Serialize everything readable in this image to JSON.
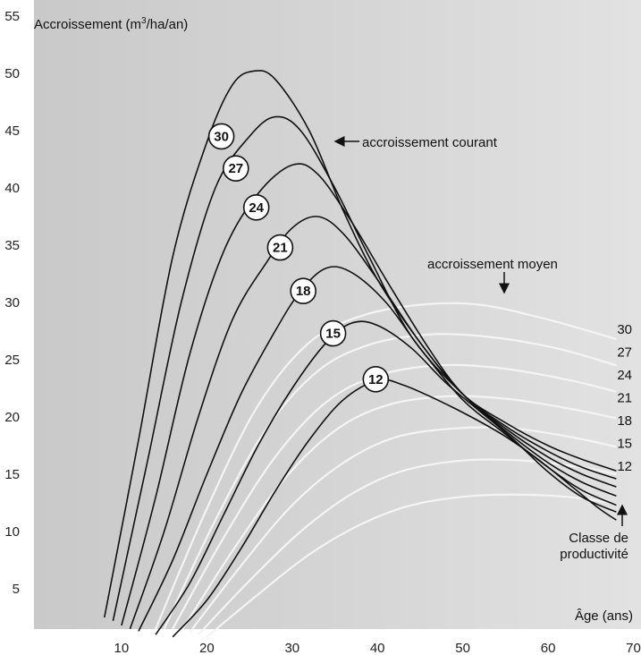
{
  "chart_data": {
    "type": "line",
    "ylabel_pre": "Accroissement (m",
    "ylabel_sup": "3",
    "ylabel_post": "/ha/an)",
    "xlabel": "Âge (ans)",
    "xlim": [
      0,
      70
    ],
    "ylim": [
      0,
      55
    ],
    "x_ticks": [
      10,
      20,
      30,
      40,
      50,
      60,
      70
    ],
    "y_ticks": [
      5,
      10,
      15,
      20,
      25,
      30,
      35,
      40,
      45,
      50,
      55
    ],
    "annotation_current": "accroissement courant",
    "annotation_mean": "accroissement moyen",
    "class_title_line1": "Classe de",
    "class_title_line2": "productivité",
    "current_increment_series": [
      {
        "name": "30",
        "points": [
          [
            8,
            2.5
          ],
          [
            12,
            18
          ],
          [
            16,
            34
          ],
          [
            20,
            44
          ],
          [
            23,
            49
          ],
          [
            25.5,
            50.2
          ],
          [
            28,
            49.5
          ],
          [
            32,
            45
          ],
          [
            36,
            38
          ],
          [
            40,
            32
          ],
          [
            45,
            26.5
          ],
          [
            50,
            22
          ],
          [
            55,
            19.5
          ],
          [
            60,
            17.5
          ],
          [
            64,
            16.3
          ],
          [
            68,
            15.3
          ]
        ]
      },
      {
        "name": "27",
        "points": [
          [
            9,
            2.2
          ],
          [
            13,
            16
          ],
          [
            17,
            30
          ],
          [
            21,
            40
          ],
          [
            25,
            44.5
          ],
          [
            28,
            46.2
          ],
          [
            31,
            45
          ],
          [
            35,
            40
          ],
          [
            39,
            34
          ],
          [
            44,
            27
          ],
          [
            50,
            22
          ],
          [
            55,
            19.2
          ],
          [
            60,
            17
          ],
          [
            64,
            15.6
          ],
          [
            68,
            14.6
          ]
        ]
      },
      {
        "name": "24",
        "points": [
          [
            10,
            1.8
          ],
          [
            14,
            13
          ],
          [
            18,
            25.5
          ],
          [
            22,
            34.5
          ],
          [
            26,
            39.5
          ],
          [
            30,
            42
          ],
          [
            33,
            41.2
          ],
          [
            37,
            37
          ],
          [
            41,
            32
          ],
          [
            46,
            26
          ],
          [
            50,
            22
          ],
          [
            55,
            19
          ],
          [
            60,
            16.5
          ],
          [
            64,
            15
          ],
          [
            68,
            13.9
          ]
        ]
      },
      {
        "name": "21",
        "points": [
          [
            11,
            1.5
          ],
          [
            15,
            10
          ],
          [
            19,
            20
          ],
          [
            23,
            28.5
          ],
          [
            27,
            33.5
          ],
          [
            30,
            36.5
          ],
          [
            33,
            37.5
          ],
          [
            36,
            36
          ],
          [
            40,
            32
          ],
          [
            45,
            26.5
          ],
          [
            50,
            22
          ],
          [
            55,
            18.8
          ],
          [
            60,
            16
          ],
          [
            64,
            14.3
          ],
          [
            68,
            13.1
          ]
        ]
      },
      {
        "name": "18",
        "points": [
          [
            12,
            1.3
          ],
          [
            16,
            7.5
          ],
          [
            20,
            15
          ],
          [
            24,
            22
          ],
          [
            28,
            27.5
          ],
          [
            31,
            31
          ],
          [
            34,
            33
          ],
          [
            37,
            32.6
          ],
          [
            41,
            30
          ],
          [
            45,
            26
          ],
          [
            50,
            21.5
          ],
          [
            55,
            18.5
          ],
          [
            60,
            15.6
          ],
          [
            64,
            13.6
          ],
          [
            68,
            12.3
          ]
        ]
      },
      {
        "name": "15",
        "points": [
          [
            14,
            1
          ],
          [
            18,
            5.5
          ],
          [
            22,
            11.5
          ],
          [
            26,
            17.5
          ],
          [
            30,
            22.5
          ],
          [
            34,
            26.5
          ],
          [
            37,
            28.2
          ],
          [
            40,
            28
          ],
          [
            44,
            26
          ],
          [
            48,
            23
          ],
          [
            52,
            20.5
          ],
          [
            56,
            18
          ],
          [
            60,
            15.2
          ],
          [
            64,
            13
          ],
          [
            68,
            11.7
          ]
        ]
      },
      {
        "name": "12",
        "points": [
          [
            16,
            0.8
          ],
          [
            20,
            4
          ],
          [
            24,
            8.5
          ],
          [
            28,
            13.5
          ],
          [
            32,
            18
          ],
          [
            36,
            21.5
          ],
          [
            40,
            23.2
          ],
          [
            43,
            22.8
          ],
          [
            47,
            21.5
          ],
          [
            51,
            20
          ],
          [
            55,
            18.3
          ],
          [
            59,
            16.2
          ],
          [
            63,
            13.8
          ],
          [
            66,
            12
          ],
          [
            68,
            11
          ]
        ]
      }
    ],
    "mean_increment_series": [
      {
        "name": "30",
        "points": [
          [
            14,
            1.5
          ],
          [
            20,
            12
          ],
          [
            26,
            21
          ],
          [
            32,
            26.5
          ],
          [
            38,
            28.8
          ],
          [
            45,
            29.8
          ],
          [
            52,
            29.8
          ],
          [
            60,
            28.5
          ],
          [
            68,
            26.8
          ]
        ]
      },
      {
        "name": "27",
        "points": [
          [
            15,
            1.5
          ],
          [
            21,
            11
          ],
          [
            27,
            19
          ],
          [
            33,
            24
          ],
          [
            39,
            26.3
          ],
          [
            46,
            27.2
          ],
          [
            53,
            27
          ],
          [
            61,
            26
          ],
          [
            68,
            24.5
          ]
        ]
      },
      {
        "name": "24",
        "points": [
          [
            16,
            1.5
          ],
          [
            22,
            9.5
          ],
          [
            28,
            16.5
          ],
          [
            34,
            21.3
          ],
          [
            40,
            23.6
          ],
          [
            47,
            24.5
          ],
          [
            54,
            24.3
          ],
          [
            62,
            23.3
          ],
          [
            68,
            22.2
          ]
        ]
      },
      {
        "name": "21",
        "points": [
          [
            17,
            1.3
          ],
          [
            23,
            8.3
          ],
          [
            29,
            14.5
          ],
          [
            35,
            18.8
          ],
          [
            41,
            21
          ],
          [
            48,
            21.8
          ],
          [
            55,
            21.6
          ],
          [
            62,
            20.8
          ],
          [
            68,
            19.9
          ]
        ]
      },
      {
        "name": "18",
        "points": [
          [
            18,
            1.2
          ],
          [
            24,
            7
          ],
          [
            30,
            12.3
          ],
          [
            36,
            16
          ],
          [
            42,
            18.2
          ],
          [
            49,
            19
          ],
          [
            56,
            19
          ],
          [
            63,
            18.2
          ],
          [
            68,
            17.4
          ]
        ]
      },
      {
        "name": "15",
        "points": [
          [
            19,
            1
          ],
          [
            25,
            5.7
          ],
          [
            31,
            10
          ],
          [
            37,
            13.3
          ],
          [
            43,
            15.3
          ],
          [
            50,
            16.2
          ],
          [
            57,
            16.2
          ],
          [
            64,
            15.6
          ],
          [
            68,
            15
          ]
        ]
      },
      {
        "name": "12",
        "points": [
          [
            20,
            0.8
          ],
          [
            26,
            4.5
          ],
          [
            32,
            8
          ],
          [
            38,
            10.6
          ],
          [
            44,
            12.3
          ],
          [
            51,
            13.1
          ],
          [
            58,
            13.2
          ],
          [
            64,
            12.9
          ],
          [
            68,
            12.4
          ]
        ]
      }
    ],
    "curve_label_positions": [
      {
        "label": "30",
        "x": 21.7,
        "y": 44.5
      },
      {
        "label": "27",
        "x": 23.4,
        "y": 41.7
      },
      {
        "label": "24",
        "x": 25.8,
        "y": 38.3
      },
      {
        "label": "21",
        "x": 28.6,
        "y": 34.8
      },
      {
        "label": "18",
        "x": 31.3,
        "y": 31.0
      },
      {
        "label": "15",
        "x": 34.8,
        "y": 27.3
      },
      {
        "label": "12",
        "x": 39.8,
        "y": 23.3
      }
    ],
    "end_labels": [
      "30",
      "27",
      "24",
      "21",
      "18",
      "15",
      "12"
    ]
  }
}
